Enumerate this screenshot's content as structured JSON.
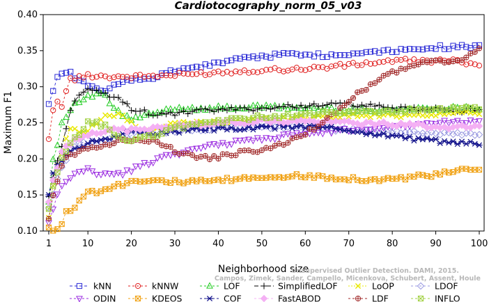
{
  "chart_data": {
    "type": "line",
    "title": "Cardiotocography_norm_05_v03",
    "xlabel": "Neighborhood size",
    "ylabel": "Maximum F1",
    "xlim": [
      1,
      100
    ],
    "ylim": [
      0.1,
      0.4
    ],
    "x_ticks": [
      1,
      10,
      20,
      30,
      40,
      50,
      60,
      70,
      80,
      90,
      100
    ],
    "y_ticks": [
      "0.10",
      "0.15",
      "0.20",
      "0.25",
      "0.30",
      "0.35",
      "0.40"
    ],
    "grid": false,
    "legend_position": "bottom",
    "watermark": [
      "Unsupervised Outlier Detection. DAMI, 2015.",
      "Campos, Zimek, Sander, Campello, Micenkova, Schubert, Assent, Houle"
    ],
    "series": [
      {
        "name": "kNN",
        "color": "#2b2bd6",
        "dash": "4,3",
        "marker": "square",
        "knots": [
          [
            1,
            0.278
          ],
          [
            2,
            0.297
          ],
          [
            3,
            0.315
          ],
          [
            4,
            0.32
          ],
          [
            5,
            0.322
          ],
          [
            6,
            0.318
          ],
          [
            8,
            0.31
          ],
          [
            10,
            0.3
          ],
          [
            12,
            0.298
          ],
          [
            14,
            0.294
          ],
          [
            16,
            0.3
          ],
          [
            20,
            0.31
          ],
          [
            25,
            0.312
          ],
          [
            30,
            0.322
          ],
          [
            35,
            0.327
          ],
          [
            40,
            0.333
          ],
          [
            45,
            0.34
          ],
          [
            50,
            0.342
          ],
          [
            55,
            0.345
          ],
          [
            60,
            0.346
          ],
          [
            65,
            0.343
          ],
          [
            70,
            0.345
          ],
          [
            75,
            0.35
          ],
          [
            80,
            0.35
          ],
          [
            85,
            0.353
          ],
          [
            90,
            0.355
          ],
          [
            95,
            0.355
          ],
          [
            100,
            0.355
          ]
        ]
      },
      {
        "name": "kNNW",
        "color": "#e02020",
        "dash": "3,3",
        "marker": "circle",
        "knots": [
          [
            1,
            0.226
          ],
          [
            2,
            0.27
          ],
          [
            3,
            0.28
          ],
          [
            4,
            0.27
          ],
          [
            5,
            0.296
          ],
          [
            6,
            0.31
          ],
          [
            8,
            0.312
          ],
          [
            10,
            0.316
          ],
          [
            15,
            0.314
          ],
          [
            20,
            0.314
          ],
          [
            30,
            0.316
          ],
          [
            40,
            0.32
          ],
          [
            50,
            0.323
          ],
          [
            60,
            0.325
          ],
          [
            70,
            0.33
          ],
          [
            75,
            0.333
          ],
          [
            80,
            0.336
          ],
          [
            85,
            0.336
          ],
          [
            90,
            0.336
          ],
          [
            95,
            0.335
          ],
          [
            100,
            0.332
          ]
        ]
      },
      {
        "name": "LOF",
        "color": "#22cc22",
        "dash": "3,3",
        "marker": "triangle-up",
        "knots": [
          [
            1,
            0.14
          ],
          [
            2,
            0.2
          ],
          [
            3,
            0.22
          ],
          [
            4,
            0.25
          ],
          [
            5,
            0.26
          ],
          [
            6,
            0.27
          ],
          [
            8,
            0.28
          ],
          [
            10,
            0.285
          ],
          [
            12,
            0.29
          ],
          [
            14,
            0.286
          ],
          [
            16,
            0.27
          ],
          [
            18,
            0.26
          ],
          [
            20,
            0.255
          ],
          [
            25,
            0.262
          ],
          [
            30,
            0.27
          ],
          [
            40,
            0.27
          ],
          [
            50,
            0.272
          ],
          [
            60,
            0.27
          ],
          [
            70,
            0.268
          ],
          [
            80,
            0.268
          ],
          [
            90,
            0.27
          ],
          [
            100,
            0.27
          ]
        ]
      },
      {
        "name": "SimplifiedLOF",
        "color": "#000000",
        "dash": "6,3",
        "marker": "plus",
        "knots": [
          [
            1,
            0.148
          ],
          [
            2,
            0.175
          ],
          [
            3,
            0.195
          ],
          [
            4,
            0.22
          ],
          [
            5,
            0.24
          ],
          [
            6,
            0.27
          ],
          [
            8,
            0.29
          ],
          [
            10,
            0.295
          ],
          [
            14,
            0.29
          ],
          [
            18,
            0.28
          ],
          [
            20,
            0.27
          ],
          [
            25,
            0.262
          ],
          [
            30,
            0.262
          ],
          [
            35,
            0.266
          ],
          [
            40,
            0.268
          ],
          [
            50,
            0.27
          ],
          [
            60,
            0.274
          ],
          [
            70,
            0.276
          ],
          [
            75,
            0.273
          ],
          [
            80,
            0.27
          ],
          [
            90,
            0.268
          ],
          [
            100,
            0.267
          ]
        ]
      },
      {
        "name": "LoOP",
        "color": "#e8e800",
        "dash": "2,2",
        "marker": "x",
        "knots": [
          [
            1,
            0.12
          ],
          [
            2,
            0.16
          ],
          [
            3,
            0.19
          ],
          [
            4,
            0.21
          ],
          [
            5,
            0.23
          ],
          [
            6,
            0.24
          ],
          [
            8,
            0.24
          ],
          [
            10,
            0.24
          ],
          [
            14,
            0.26
          ],
          [
            18,
            0.26
          ],
          [
            22,
            0.24
          ],
          [
            26,
            0.24
          ],
          [
            30,
            0.25
          ],
          [
            40,
            0.25
          ],
          [
            50,
            0.255
          ],
          [
            60,
            0.258
          ],
          [
            70,
            0.26
          ],
          [
            80,
            0.26
          ],
          [
            90,
            0.262
          ],
          [
            100,
            0.265
          ]
        ]
      },
      {
        "name": "LDOF",
        "color": "#9898e0",
        "dash": "3,3",
        "marker": "diamond",
        "knots": [
          [
            1,
            0.13
          ],
          [
            2,
            0.15
          ],
          [
            3,
            0.17
          ],
          [
            4,
            0.19
          ],
          [
            5,
            0.2
          ],
          [
            6,
            0.21
          ],
          [
            8,
            0.225
          ],
          [
            10,
            0.22
          ],
          [
            14,
            0.225
          ],
          [
            18,
            0.23
          ],
          [
            22,
            0.24
          ],
          [
            26,
            0.235
          ],
          [
            30,
            0.24
          ],
          [
            40,
            0.242
          ],
          [
            50,
            0.245
          ],
          [
            60,
            0.243
          ],
          [
            70,
            0.24
          ],
          [
            80,
            0.238
          ],
          [
            90,
            0.236
          ],
          [
            100,
            0.235
          ]
        ]
      },
      {
        "name": "ODIN",
        "color": "#9a2be0",
        "dash": "3,3",
        "marker": "triangle-down",
        "knots": [
          [
            1,
            0.11
          ],
          [
            2,
            0.13
          ],
          [
            3,
            0.15
          ],
          [
            4,
            0.16
          ],
          [
            6,
            0.175
          ],
          [
            8,
            0.182
          ],
          [
            10,
            0.186
          ],
          [
            12,
            0.18
          ],
          [
            14,
            0.18
          ],
          [
            16,
            0.178
          ],
          [
            18,
            0.18
          ],
          [
            20,
            0.185
          ],
          [
            24,
            0.195
          ],
          [
            28,
            0.205
          ],
          [
            32,
            0.21
          ],
          [
            36,
            0.215
          ],
          [
            40,
            0.22
          ],
          [
            45,
            0.225
          ],
          [
            50,
            0.228
          ],
          [
            55,
            0.232
          ],
          [
            60,
            0.235
          ],
          [
            65,
            0.238
          ],
          [
            70,
            0.24
          ],
          [
            80,
            0.246
          ],
          [
            90,
            0.25
          ],
          [
            100,
            0.254
          ]
        ]
      },
      {
        "name": "KDEOS",
        "color": "#f0a010",
        "dash": "3,3",
        "marker": "square-x",
        "knots": [
          [
            1,
            0.105
          ],
          [
            2,
            0.1
          ],
          [
            3,
            0.105
          ],
          [
            4,
            0.11
          ],
          [
            5,
            0.125
          ],
          [
            6,
            0.13
          ],
          [
            8,
            0.14
          ],
          [
            10,
            0.155
          ],
          [
            12,
            0.155
          ],
          [
            14,
            0.16
          ],
          [
            16,
            0.162
          ],
          [
            18,
            0.165
          ],
          [
            20,
            0.17
          ],
          [
            22,
            0.17
          ],
          [
            25,
            0.172
          ],
          [
            30,
            0.168
          ],
          [
            35,
            0.168
          ],
          [
            40,
            0.17
          ],
          [
            45,
            0.172
          ],
          [
            50,
            0.175
          ],
          [
            55,
            0.176
          ],
          [
            60,
            0.176
          ],
          [
            65,
            0.175
          ],
          [
            70,
            0.173
          ],
          [
            75,
            0.171
          ],
          [
            80,
            0.172
          ],
          [
            85,
            0.175
          ],
          [
            90,
            0.178
          ],
          [
            95,
            0.183
          ],
          [
            100,
            0.186
          ]
        ]
      },
      {
        "name": "COF",
        "color": "#14148c",
        "dash": "3,3",
        "marker": "asterisk",
        "knots": [
          [
            1,
            0.15
          ],
          [
            2,
            0.18
          ],
          [
            3,
            0.19
          ],
          [
            4,
            0.2
          ],
          [
            6,
            0.21
          ],
          [
            8,
            0.215
          ],
          [
            10,
            0.22
          ],
          [
            12,
            0.225
          ],
          [
            15,
            0.23
          ],
          [
            18,
            0.235
          ],
          [
            20,
            0.24
          ],
          [
            25,
            0.235
          ],
          [
            30,
            0.238
          ],
          [
            35,
            0.24
          ],
          [
            40,
            0.242
          ],
          [
            45,
            0.24
          ],
          [
            50,
            0.243
          ],
          [
            55,
            0.245
          ],
          [
            60,
            0.245
          ],
          [
            65,
            0.243
          ],
          [
            70,
            0.24
          ],
          [
            75,
            0.235
          ],
          [
            80,
            0.232
          ],
          [
            85,
            0.228
          ],
          [
            90,
            0.225
          ],
          [
            95,
            0.222
          ],
          [
            100,
            0.22
          ]
        ]
      },
      {
        "name": "FastABOD",
        "color": "#f4b0f4",
        "dash": "3,3",
        "marker": "diamond-filled",
        "knots": [
          [
            1,
            0.14
          ],
          [
            2,
            0.17
          ],
          [
            3,
            0.19
          ],
          [
            4,
            0.21
          ],
          [
            6,
            0.22
          ],
          [
            8,
            0.23
          ],
          [
            10,
            0.235
          ],
          [
            15,
            0.24
          ],
          [
            20,
            0.24
          ],
          [
            30,
            0.245
          ],
          [
            40,
            0.25
          ],
          [
            50,
            0.252
          ],
          [
            60,
            0.252
          ],
          [
            70,
            0.25
          ],
          [
            80,
            0.248
          ],
          [
            90,
            0.245
          ],
          [
            100,
            0.243
          ]
        ]
      },
      {
        "name": "LDF",
        "color": "#a02828",
        "dash": "3,3",
        "marker": "circle-plus",
        "knots": [
          [
            1,
            0.12
          ],
          [
            2,
            0.15
          ],
          [
            3,
            0.17
          ],
          [
            4,
            0.19
          ],
          [
            5,
            0.2
          ],
          [
            6,
            0.205
          ],
          [
            8,
            0.21
          ],
          [
            10,
            0.215
          ],
          [
            14,
            0.22
          ],
          [
            18,
            0.225
          ],
          [
            22,
            0.228
          ],
          [
            26,
            0.225
          ],
          [
            30,
            0.21
          ],
          [
            34,
            0.205
          ],
          [
            38,
            0.2
          ],
          [
            42,
            0.205
          ],
          [
            46,
            0.21
          ],
          [
            50,
            0.212
          ],
          [
            55,
            0.22
          ],
          [
            60,
            0.235
          ],
          [
            65,
            0.255
          ],
          [
            68,
            0.27
          ],
          [
            72,
            0.29
          ],
          [
            76,
            0.305
          ],
          [
            80,
            0.32
          ],
          [
            85,
            0.33
          ],
          [
            90,
            0.335
          ],
          [
            95,
            0.335
          ],
          [
            100,
            0.352
          ]
        ]
      },
      {
        "name": "INFLO",
        "color": "#a0d040",
        "dash": "3,3",
        "marker": "square-x",
        "knots": [
          [
            1,
            0.13
          ],
          [
            2,
            0.16
          ],
          [
            3,
            0.18
          ],
          [
            4,
            0.2
          ],
          [
            6,
            0.22
          ],
          [
            8,
            0.235
          ],
          [
            10,
            0.25
          ],
          [
            12,
            0.25
          ],
          [
            14,
            0.245
          ],
          [
            16,
            0.235
          ],
          [
            18,
            0.228
          ],
          [
            20,
            0.226
          ],
          [
            24,
            0.23
          ],
          [
            28,
            0.24
          ],
          [
            32,
            0.245
          ],
          [
            36,
            0.25
          ],
          [
            40,
            0.252
          ],
          [
            50,
            0.258
          ],
          [
            60,
            0.262
          ],
          [
            70,
            0.264
          ],
          [
            80,
            0.266
          ],
          [
            90,
            0.268
          ],
          [
            100,
            0.27
          ]
        ]
      }
    ]
  }
}
